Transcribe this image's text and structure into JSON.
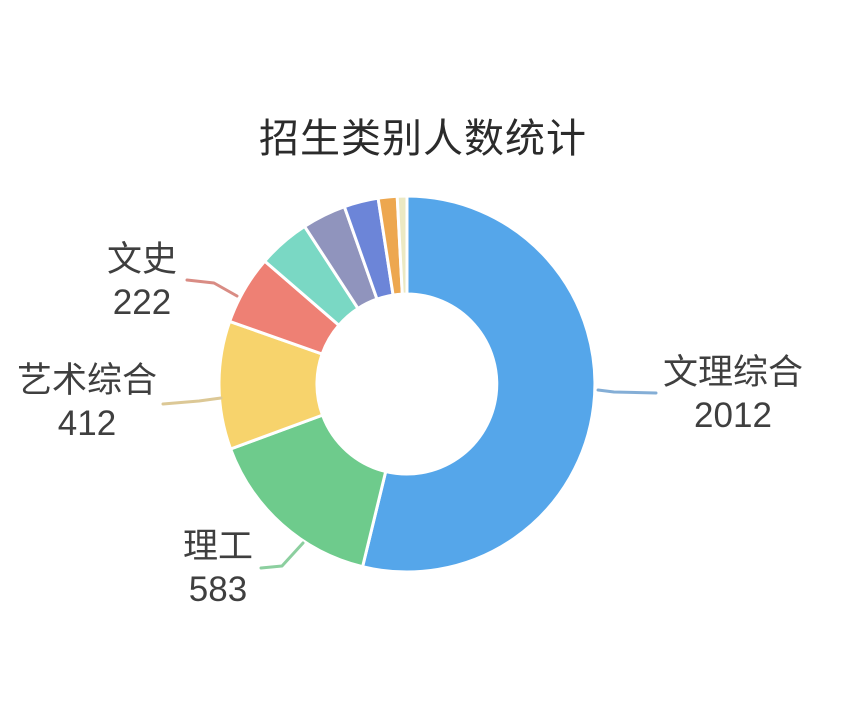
{
  "page": {
    "background_color": "#ffffff"
  },
  "chart_data": {
    "type": "pie",
    "variant": "donut",
    "title": "招生类别人数统计",
    "legend": "none",
    "start_angle_deg": 0,
    "direction": "clockwise",
    "inner_radius_ratio": 0.48,
    "unlabeled_slice_values_estimated": true,
    "slices": [
      {
        "name": "文理综合",
        "value": 2012,
        "color": "#55a6ea",
        "label_visible": true,
        "leader_color": "#84aed6"
      },
      {
        "name": "理工",
        "value": 583,
        "color": "#6ecb8c",
        "label_visible": true,
        "leader_color": "#8ccf9f"
      },
      {
        "name": "艺术综合",
        "value": 412,
        "color": "#f7d36c",
        "label_visible": true,
        "leader_color": "#dcc896"
      },
      {
        "name": "文史",
        "value": 222,
        "color": "#ee8074",
        "label_visible": true,
        "leader_color": "#d98c84"
      },
      {
        "name": "",
        "value": 168,
        "color": "#7ad8c4",
        "label_visible": false
      },
      {
        "name": "",
        "value": 141,
        "color": "#9094bd",
        "label_visible": false
      },
      {
        "name": "",
        "value": 110,
        "color": "#6c85d8",
        "label_visible": false
      },
      {
        "name": "",
        "value": 61,
        "color": "#eda74f",
        "label_visible": false
      },
      {
        "name": "",
        "value": 31,
        "color": "#ece9c3",
        "label_visible": false
      }
    ]
  }
}
